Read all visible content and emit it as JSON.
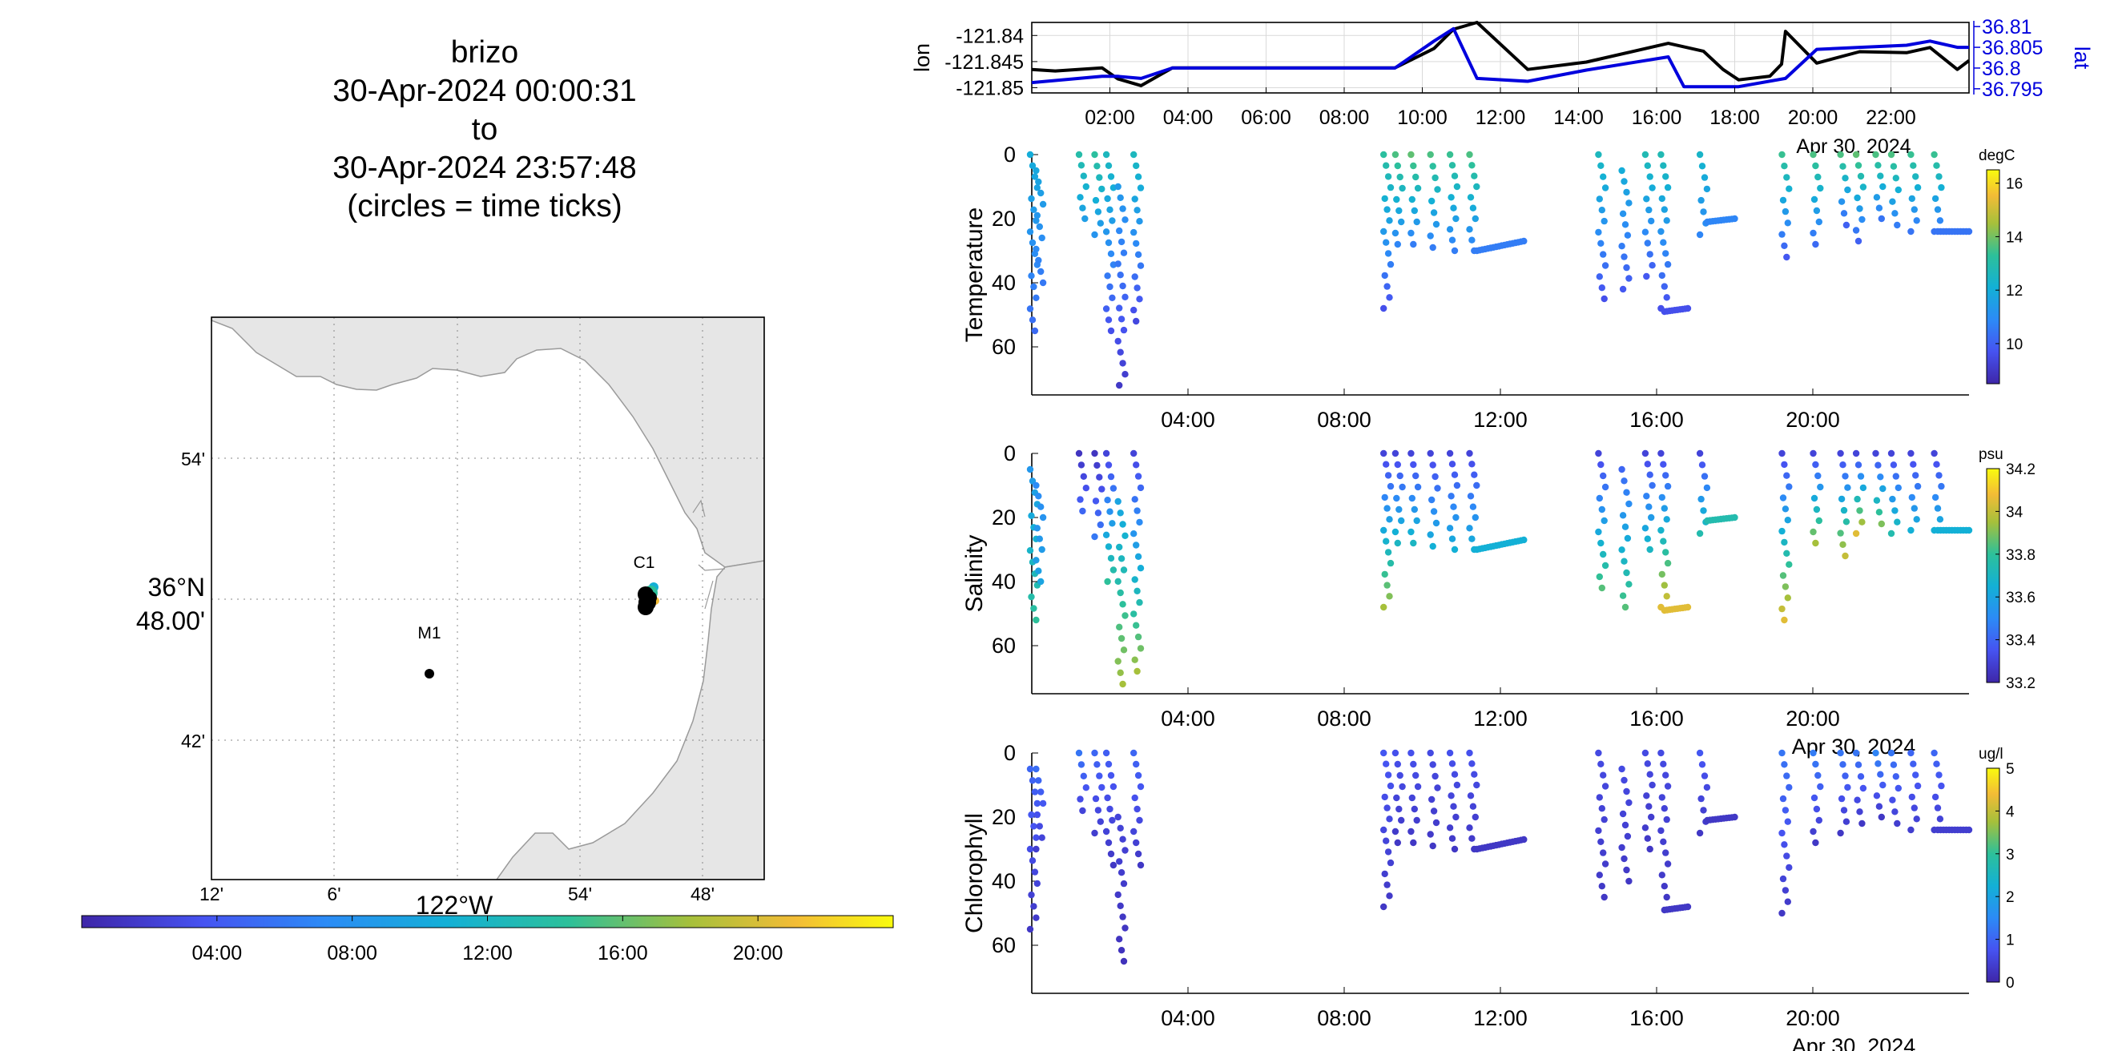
{
  "title": {
    "lines": [
      "brizo",
      "30-Apr-2024 00:00:31",
      "to",
      "30-Apr-2024 23:57:48",
      "(circles = time ticks)"
    ]
  },
  "map": {
    "lat_ticks": [
      "54'",
      "42'"
    ],
    "lat_center_label": [
      "36°N",
      "48.00'"
    ],
    "lon_ticks": [
      "12'",
      "6'",
      "54'",
      "48'"
    ],
    "lon_center_label": "122°W",
    "stations": [
      "C1",
      "M1"
    ],
    "colors": {
      "land": "#e6e6e6",
      "coast": "#9a9a9a",
      "grid": "#888888"
    }
  },
  "time_colorbar": {
    "tick_labels": [
      "04:00",
      "08:00",
      "12:00",
      "16:00",
      "20:00"
    ],
    "range_hours": [
      0,
      24
    ]
  },
  "chart_data": [
    {
      "type": "line",
      "title": "",
      "xlabel": "",
      "x_tick_labels": [
        "02:00",
        "04:00",
        "06:00",
        "08:00",
        "10:00",
        "12:00",
        "14:00",
        "16:00",
        "18:00",
        "20:00",
        "22:00"
      ],
      "x_date_label": "Apr 30, 2024",
      "xlim_hours": [
        0,
        24
      ],
      "left_axis": {
        "label": "lon",
        "ticks": [
          "-121.84",
          "-121.845",
          "-121.85"
        ],
        "ylim": [
          -121.851,
          -121.8375
        ]
      },
      "right_axis": {
        "label": "lat",
        "ticks": [
          "36.81",
          "36.805",
          "36.8",
          "36.795"
        ],
        "ylim": [
          36.794,
          36.811
        ],
        "color": "#0000dd"
      },
      "grid": true,
      "series": [
        {
          "axis": "left",
          "color": "#000000",
          "x": [
            0,
            0.6,
            1.8,
            2.2,
            2.8,
            3.6,
            9.0,
            9.3,
            10.3,
            10.8,
            11.4,
            12.7,
            14.2,
            16.3,
            17.2,
            17.7,
            18.1,
            18.9,
            19.2,
            19.3,
            20.1,
            21.2,
            22.4,
            23.0,
            23.7,
            24.0
          ],
          "y": [
            -121.8465,
            -121.8468,
            -121.8462,
            -121.8483,
            -121.8496,
            -121.8462,
            -121.8462,
            -121.8462,
            -121.8425,
            -121.8388,
            -121.8375,
            -121.8465,
            -121.8451,
            -121.8415,
            -121.843,
            -121.8465,
            -121.8485,
            -121.8478,
            -121.8455,
            -121.8392,
            -121.8453,
            -121.8431,
            -121.8433,
            -121.8423,
            -121.8465,
            -121.8448
          ]
        },
        {
          "axis": "right",
          "color": "#0000dd",
          "x": [
            0,
            1.8,
            2.2,
            2.8,
            3.6,
            9.0,
            9.3,
            10.3,
            10.8,
            11.4,
            12.7,
            14.2,
            16.3,
            16.7,
            17.7,
            18.1,
            19.3,
            20.1,
            21.2,
            22.4,
            23.0,
            23.7,
            24.0
          ],
          "y": [
            36.7965,
            36.798,
            36.798,
            36.7975,
            36.8,
            36.8,
            36.8,
            36.8065,
            36.8095,
            36.7975,
            36.7968,
            36.7995,
            36.8027,
            36.7955,
            36.7955,
            36.7955,
            36.7975,
            36.8045,
            36.805,
            36.8055,
            36.8065,
            36.805,
            36.805
          ]
        }
      ]
    },
    {
      "type": "scatter",
      "ylabel": "Temperature",
      "y_ticks": [
        "0",
        "20",
        "40",
        "60"
      ],
      "ylim": [
        0,
        75
      ],
      "y_reversed": true,
      "x_tick_labels": [
        "04:00",
        "08:00",
        "12:00",
        "16:00",
        "20:00"
      ],
      "xlim_hours": [
        0,
        24
      ],
      "colorbar": {
        "unit": "degC",
        "ticks": [
          "16",
          "14",
          "12",
          "10"
        ],
        "clim": [
          8.5,
          16.5
        ]
      },
      "profiles": [
        {
          "t": 0.05,
          "d0": 0,
          "d1": 55,
          "c0": 12.0,
          "c1": 10.2
        },
        {
          "t": 0.2,
          "d0": 5,
          "d1": 40,
          "c0": 11.8,
          "c1": 10.5
        },
        {
          "t": 1.3,
          "d0": 0,
          "d1": 20,
          "c0": 13.0,
          "c1": 11.5
        },
        {
          "t": 1.7,
          "d0": 0,
          "d1": 25,
          "c0": 13.2,
          "c1": 11.2
        },
        {
          "t": 2.0,
          "d0": 0,
          "d1": 55,
          "c0": 12.6,
          "c1": 9.6
        },
        {
          "t": 2.3,
          "d0": 10,
          "d1": 72,
          "c0": 11.4,
          "c1": 9.0
        },
        {
          "t": 2.7,
          "d0": 0,
          "d1": 52,
          "c0": 12.6,
          "c1": 9.4
        },
        {
          "t": 9.1,
          "d0": 0,
          "d1": 48,
          "c0": 13.2,
          "c1": 9.6
        },
        {
          "t": 9.4,
          "d0": 0,
          "d1": 28,
          "c0": 13.6,
          "c1": 10.8
        },
        {
          "t": 9.8,
          "d0": 0,
          "d1": 28,
          "c0": 13.8,
          "c1": 10.6
        },
        {
          "t": 10.3,
          "d0": 0,
          "d1": 29,
          "c0": 13.6,
          "c1": 10.6
        },
        {
          "t": 10.8,
          "d0": 0,
          "d1": 30,
          "c0": 13.4,
          "c1": 10.6
        },
        {
          "t": 11.3,
          "d0": 0,
          "d1": 30,
          "c0": 13.6,
          "c1": 10.6
        },
        {
          "t": 14.6,
          "d0": 0,
          "d1": 45,
          "c0": 12.6,
          "c1": 9.6
        },
        {
          "t": 15.2,
          "d0": 5,
          "d1": 42,
          "c0": 12.0,
          "c1": 9.8
        },
        {
          "t": 15.8,
          "d0": 0,
          "d1": 38,
          "c0": 12.8,
          "c1": 9.8
        },
        {
          "t": 16.2,
          "d0": 0,
          "d1": 48,
          "c0": 12.8,
          "c1": 9.6
        },
        {
          "t": 17.2,
          "d0": 0,
          "d1": 25,
          "c0": 12.4,
          "c1": 10.8
        },
        {
          "t": 19.3,
          "d0": 0,
          "d1": 32,
          "c0": 13.4,
          "c1": 9.8
        },
        {
          "t": 20.1,
          "d0": 0,
          "d1": 28,
          "c0": 13.6,
          "c1": 10.2
        },
        {
          "t": 20.8,
          "d0": 0,
          "d1": 22,
          "c0": 13.6,
          "c1": 10.0
        },
        {
          "t": 21.2,
          "d0": 0,
          "d1": 27,
          "c0": 13.8,
          "c1": 10.0
        },
        {
          "t": 21.7,
          "d0": 0,
          "d1": 20,
          "c0": 13.6,
          "c1": 10.4
        },
        {
          "t": 22.1,
          "d0": 0,
          "d1": 22,
          "c0": 13.6,
          "c1": 10.6
        },
        {
          "t": 22.6,
          "d0": 0,
          "d1": 24,
          "c0": 13.4,
          "c1": 10.4
        },
        {
          "t": 23.2,
          "d0": 0,
          "d1": 24,
          "c0": 13.4,
          "c1": 10.4
        }
      ],
      "tails": [
        {
          "t0": 11.4,
          "t1": 12.6,
          "d0": 30,
          "d1": 27,
          "c": 10.6
        },
        {
          "t0": 16.2,
          "t1": 16.8,
          "d0": 49,
          "d1": 48,
          "c": 9.6
        },
        {
          "t0": 17.3,
          "t1": 18.0,
          "d0": 21,
          "d1": 20,
          "c": 10.8
        },
        {
          "t0": 23.2,
          "t1": 24.0,
          "d0": 24,
          "d1": 24,
          "c": 10.4
        }
      ]
    },
    {
      "type": "scatter",
      "ylabel": "Salinity",
      "y_ticks": [
        "0",
        "20",
        "40",
        "60"
      ],
      "ylim": [
        0,
        75
      ],
      "y_reversed": true,
      "x_tick_labels": [
        "04:00",
        "08:00",
        "12:00",
        "16:00",
        "20:00"
      ],
      "x_date_label": "Apr 30, 2024",
      "xlim_hours": [
        0,
        24
      ],
      "colorbar": {
        "unit": "psu",
        "ticks": [
          "34.2",
          "34",
          "33.8",
          "33.6",
          "33.4",
          "33.2"
        ],
        "clim": [
          33.2,
          34.2
        ]
      },
      "profiles": [
        {
          "t": 0.05,
          "d0": 5,
          "d1": 52,
          "c0": 33.55,
          "c1": 33.8
        },
        {
          "t": 0.2,
          "d0": 10,
          "d1": 40,
          "c0": 33.5,
          "c1": 33.6
        },
        {
          "t": 1.3,
          "d0": 0,
          "d1": 18,
          "c0": 33.25,
          "c1": 33.4
        },
        {
          "t": 1.7,
          "d0": 0,
          "d1": 26,
          "c0": 33.25,
          "c1": 33.45
        },
        {
          "t": 2.0,
          "d0": 0,
          "d1": 40,
          "c0": 33.3,
          "c1": 33.8
        },
        {
          "t": 2.3,
          "d0": 15,
          "d1": 72,
          "c0": 33.6,
          "c1": 33.95
        },
        {
          "t": 2.7,
          "d0": 0,
          "d1": 68,
          "c0": 33.3,
          "c1": 33.95
        },
        {
          "t": 9.1,
          "d0": 0,
          "d1": 48,
          "c0": 33.3,
          "c1": 33.95
        },
        {
          "t": 9.4,
          "d0": 0,
          "d1": 28,
          "c0": 33.3,
          "c1": 33.7
        },
        {
          "t": 9.8,
          "d0": 0,
          "d1": 28,
          "c0": 33.3,
          "c1": 33.7
        },
        {
          "t": 10.3,
          "d0": 0,
          "d1": 29,
          "c0": 33.3,
          "c1": 33.65
        },
        {
          "t": 10.8,
          "d0": 0,
          "d1": 30,
          "c0": 33.3,
          "c1": 33.65
        },
        {
          "t": 11.3,
          "d0": 0,
          "d1": 30,
          "c0": 33.3,
          "c1": 33.65
        },
        {
          "t": 14.6,
          "d0": 0,
          "d1": 42,
          "c0": 33.3,
          "c1": 33.85
        },
        {
          "t": 15.2,
          "d0": 5,
          "d1": 48,
          "c0": 33.4,
          "c1": 33.85
        },
        {
          "t": 15.8,
          "d0": 0,
          "d1": 30,
          "c0": 33.3,
          "c1": 33.7
        },
        {
          "t": 16.2,
          "d0": 0,
          "d1": 48,
          "c0": 33.3,
          "c1": 34.05
        },
        {
          "t": 17.2,
          "d0": 0,
          "d1": 25,
          "c0": 33.3,
          "c1": 33.75
        },
        {
          "t": 19.3,
          "d0": 0,
          "d1": 52,
          "c0": 33.3,
          "c1": 34.05
        },
        {
          "t": 20.1,
          "d0": 0,
          "d1": 28,
          "c0": 33.3,
          "c1": 33.95
        },
        {
          "t": 20.8,
          "d0": 0,
          "d1": 32,
          "c0": 33.3,
          "c1": 34.0
        },
        {
          "t": 21.2,
          "d0": 0,
          "d1": 25,
          "c0": 33.3,
          "c1": 34.05
        },
        {
          "t": 21.7,
          "d0": 0,
          "d1": 22,
          "c0": 33.3,
          "c1": 33.9
        },
        {
          "t": 22.1,
          "d0": 0,
          "d1": 25,
          "c0": 33.3,
          "c1": 33.75
        },
        {
          "t": 22.6,
          "d0": 0,
          "d1": 24,
          "c0": 33.3,
          "c1": 33.65
        },
        {
          "t": 23.2,
          "d0": 0,
          "d1": 24,
          "c0": 33.3,
          "c1": 33.65
        }
      ],
      "tails": [
        {
          "t0": 11.4,
          "t1": 12.6,
          "d0": 30,
          "d1": 27,
          "c": 33.65
        },
        {
          "t0": 16.2,
          "t1": 16.8,
          "d0": 49,
          "d1": 48,
          "c": 34.05
        },
        {
          "t0": 17.3,
          "t1": 18.0,
          "d0": 21,
          "d1": 20,
          "c": 33.75
        },
        {
          "t0": 23.2,
          "t1": 24.0,
          "d0": 24,
          "d1": 24,
          "c": 33.65
        }
      ]
    },
    {
      "type": "scatter",
      "ylabel": "Chlorophyll",
      "y_ticks": [
        "0",
        "20",
        "40",
        "60"
      ],
      "ylim": [
        0,
        75
      ],
      "y_reversed": true,
      "x_tick_labels": [
        "04:00",
        "08:00",
        "12:00",
        "16:00",
        "20:00"
      ],
      "x_date_label": "Apr 30, 2024",
      "xlim_hours": [
        0,
        24
      ],
      "colorbar": {
        "unit": "ug/l",
        "ticks": [
          "5",
          "4",
          "3",
          "2",
          "1",
          "0"
        ],
        "clim": [
          0,
          5
        ]
      },
      "profiles": [
        {
          "t": 0.05,
          "d0": 5,
          "d1": 55,
          "c0": 1.0,
          "c1": 0.3
        },
        {
          "t": 0.2,
          "d0": 5,
          "d1": 30,
          "c0": 1.1,
          "c1": 0.4
        },
        {
          "t": 1.3,
          "d0": 0,
          "d1": 18,
          "c0": 1.2,
          "c1": 0.5
        },
        {
          "t": 1.7,
          "d0": 0,
          "d1": 25,
          "c0": 1.0,
          "c1": 0.4
        },
        {
          "t": 2.0,
          "d0": 0,
          "d1": 35,
          "c0": 0.9,
          "c1": 0.3
        },
        {
          "t": 2.3,
          "d0": 20,
          "d1": 65,
          "c0": 0.5,
          "c1": 0.2
        },
        {
          "t": 2.7,
          "d0": 0,
          "d1": 35,
          "c0": 1.0,
          "c1": 0.3
        },
        {
          "t": 9.1,
          "d0": 0,
          "d1": 48,
          "c0": 0.8,
          "c1": 0.3
        },
        {
          "t": 9.4,
          "d0": 0,
          "d1": 28,
          "c0": 0.7,
          "c1": 0.3
        },
        {
          "t": 9.8,
          "d0": 0,
          "d1": 28,
          "c0": 0.7,
          "c1": 0.3
        },
        {
          "t": 10.3,
          "d0": 0,
          "d1": 29,
          "c0": 0.6,
          "c1": 0.3
        },
        {
          "t": 10.8,
          "d0": 0,
          "d1": 30,
          "c0": 0.7,
          "c1": 0.3
        },
        {
          "t": 11.3,
          "d0": 0,
          "d1": 30,
          "c0": 0.7,
          "c1": 0.3
        },
        {
          "t": 14.6,
          "d0": 0,
          "d1": 45,
          "c0": 0.6,
          "c1": 0.3
        },
        {
          "t": 15.2,
          "d0": 5,
          "d1": 40,
          "c0": 0.6,
          "c1": 0.3
        },
        {
          "t": 15.8,
          "d0": 0,
          "d1": 30,
          "c0": 0.6,
          "c1": 0.3
        },
        {
          "t": 16.2,
          "d0": 0,
          "d1": 45,
          "c0": 0.6,
          "c1": 0.3
        },
        {
          "t": 17.2,
          "d0": 0,
          "d1": 25,
          "c0": 0.8,
          "c1": 0.3
        },
        {
          "t": 19.3,
          "d0": 0,
          "d1": 50,
          "c0": 1.2,
          "c1": 0.3
        },
        {
          "t": 20.1,
          "d0": 0,
          "d1": 28,
          "c0": 1.3,
          "c1": 0.3
        },
        {
          "t": 20.8,
          "d0": 0,
          "d1": 25,
          "c0": 1.2,
          "c1": 0.3
        },
        {
          "t": 21.2,
          "d0": 0,
          "d1": 22,
          "c0": 1.2,
          "c1": 0.3
        },
        {
          "t": 21.7,
          "d0": 0,
          "d1": 20,
          "c0": 1.4,
          "c1": 0.3
        },
        {
          "t": 22.1,
          "d0": 0,
          "d1": 22,
          "c0": 1.2,
          "c1": 0.4
        },
        {
          "t": 22.6,
          "d0": 0,
          "d1": 24,
          "c0": 1.0,
          "c1": 0.4
        },
        {
          "t": 23.2,
          "d0": 0,
          "d1": 24,
          "c0": 1.0,
          "c1": 0.4
        }
      ],
      "tails": [
        {
          "t0": 11.4,
          "t1": 12.6,
          "d0": 30,
          "d1": 27,
          "c": 0.3
        },
        {
          "t0": 16.2,
          "t1": 16.8,
          "d0": 49,
          "d1": 48,
          "c": 0.3
        },
        {
          "t0": 17.3,
          "t1": 18.0,
          "d0": 21,
          "d1": 20,
          "c": 0.3
        },
        {
          "t0": 23.2,
          "t1": 24.0,
          "d0": 24,
          "d1": 24,
          "c": 0.4
        }
      ]
    }
  ]
}
